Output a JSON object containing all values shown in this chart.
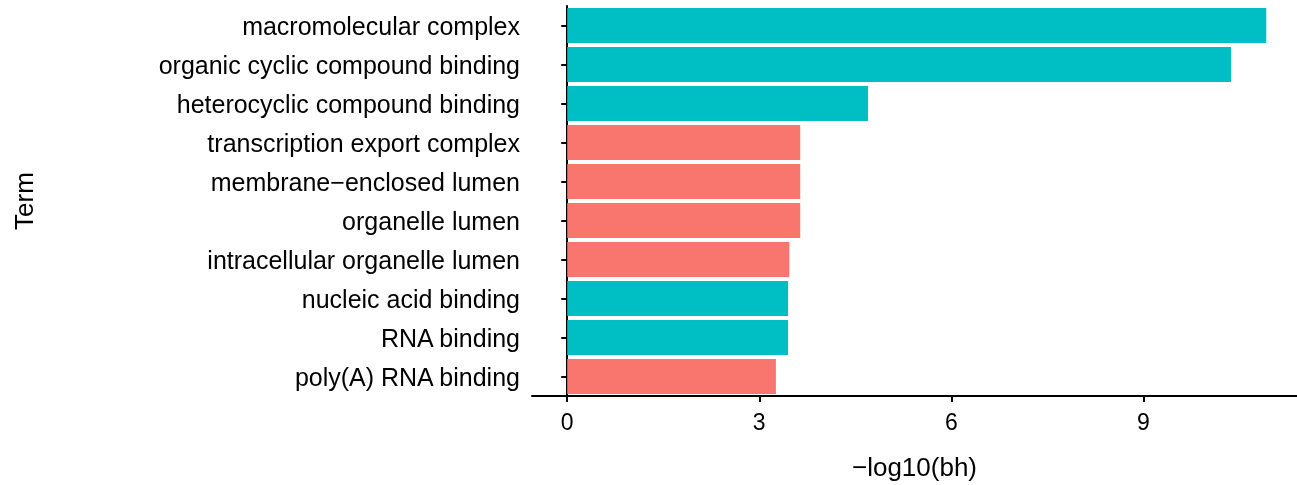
{
  "chart_data": {
    "type": "bar",
    "orientation": "horizontal",
    "xlabel": "−log10(bh)",
    "ylabel": "Term",
    "categories": [
      "macromolecular complex",
      "organic cyclic compound binding",
      "heterocyclic compound binding",
      "transcription export complex",
      "membrane−enclosed lumen",
      "organelle lumen",
      "intracellular organelle lumen",
      "nucleic acid binding",
      "RNA binding",
      "poly(A) RNA binding"
    ],
    "values": [
      10.92,
      10.37,
      4.7,
      3.64,
      3.64,
      3.64,
      3.47,
      3.45,
      3.45,
      3.26
    ],
    "colors": [
      "#00bfc4",
      "#00bfc4",
      "#00bfc4",
      "#f8766d",
      "#f8766d",
      "#f8766d",
      "#f8766d",
      "#00bfc4",
      "#00bfc4",
      "#f8766d"
    ],
    "xlim": [
      -0.55,
      11.4
    ],
    "xticks": [
      0,
      3,
      6,
      9
    ],
    "grid": false
  }
}
